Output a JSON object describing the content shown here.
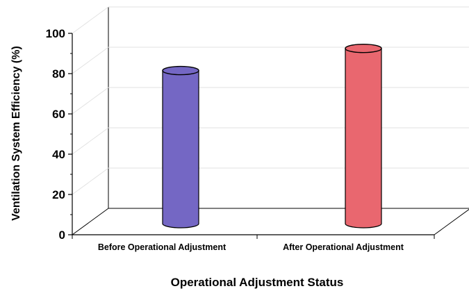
{
  "chart_data": {
    "type": "bar",
    "categories": [
      "Before Operational Adjustment",
      "After Operational Adjustment"
    ],
    "values": [
      76,
      87
    ],
    "xlabel": "Operational Adjustment Status",
    "ylabel": "Ventilation System Efficiency (%)",
    "ylim": [
      0,
      100
    ],
    "yticks": [
      "0",
      "20",
      "40",
      "60",
      "80",
      "100"
    ],
    "grid": true,
    "style": "3d-cylinder",
    "colors": [
      "#7467c4",
      "#e9676f"
    ]
  }
}
